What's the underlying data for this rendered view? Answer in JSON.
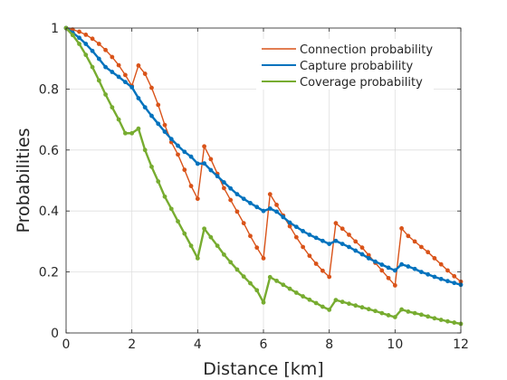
{
  "chart_data": {
    "type": "line",
    "xlabel": "Distance [km]",
    "ylabel": "Probabilities",
    "xlim": [
      0,
      12
    ],
    "ylim": [
      0,
      1
    ],
    "xticks": [
      0,
      2,
      4,
      6,
      8,
      10,
      12
    ],
    "yticks": [
      0,
      0.2,
      0.4,
      0.6,
      0.8,
      1
    ],
    "ytick_labels": [
      "0",
      "0.2",
      "0.4",
      "0.6",
      "0.8",
      "1"
    ],
    "grid": true,
    "legend_position": "top-right",
    "x": [
      0.0,
      0.2,
      0.4,
      0.6,
      0.8,
      1.0,
      1.2,
      1.4,
      1.6,
      1.8,
      2.0,
      2.2,
      2.4,
      2.6,
      2.8,
      3.0,
      3.2,
      3.4,
      3.6,
      3.8,
      4.0,
      4.2,
      4.4,
      4.6,
      4.8,
      5.0,
      5.2,
      5.4,
      5.6,
      5.8,
      6.0,
      6.2,
      6.4,
      6.6,
      6.8,
      7.0,
      7.2,
      7.4,
      7.6,
      7.8,
      8.0,
      8.2,
      8.4,
      8.6,
      8.8,
      9.0,
      9.2,
      9.4,
      9.6,
      9.8,
      10.0,
      10.2,
      10.4,
      10.6,
      10.8,
      11.0,
      11.2,
      11.4,
      11.6,
      11.8,
      12.0
    ],
    "series": [
      {
        "name": "Connection probability",
        "color": "#d95319",
        "values": [
          1.0,
          0.995,
          0.988,
          0.978,
          0.965,
          0.948,
          0.928,
          0.905,
          0.878,
          0.846,
          0.81,
          0.877,
          0.85,
          0.804,
          0.748,
          0.682,
          0.626,
          0.585,
          0.535,
          0.482,
          0.44,
          0.612,
          0.57,
          0.522,
          0.475,
          0.436,
          0.398,
          0.36,
          0.318,
          0.28,
          0.245,
          0.455,
          0.42,
          0.385,
          0.35,
          0.314,
          0.282,
          0.253,
          0.227,
          0.204,
          0.184,
          0.36,
          0.342,
          0.322,
          0.3,
          0.28,
          0.255,
          0.23,
          0.205,
          0.18,
          0.156,
          0.343,
          0.318,
          0.3,
          0.282,
          0.265,
          0.245,
          0.225,
          0.205,
          0.186,
          0.168
        ]
      },
      {
        "name": "Capture probability",
        "color": "#0072bd",
        "values": [
          1.0,
          0.985,
          0.968,
          0.948,
          0.925,
          0.899,
          0.872,
          0.856,
          0.84,
          0.823,
          0.806,
          0.77,
          0.74,
          0.712,
          0.686,
          0.66,
          0.636,
          0.614,
          0.594,
          0.578,
          0.555,
          0.556,
          0.534,
          0.514,
          0.494,
          0.474,
          0.455,
          0.44,
          0.426,
          0.413,
          0.4,
          0.408,
          0.398,
          0.38,
          0.362,
          0.348,
          0.334,
          0.322,
          0.312,
          0.302,
          0.292,
          0.302,
          0.292,
          0.282,
          0.27,
          0.258,
          0.245,
          0.234,
          0.224,
          0.214,
          0.205,
          0.225,
          0.218,
          0.21,
          0.2,
          0.192,
          0.184,
          0.177,
          0.17,
          0.164,
          0.158
        ]
      },
      {
        "name": "Coverage probability",
        "color": "#77ac30",
        "values": [
          1.0,
          0.977,
          0.948,
          0.912,
          0.872,
          0.828,
          0.782,
          0.74,
          0.7,
          0.655,
          0.655,
          0.67,
          0.6,
          0.545,
          0.497,
          0.447,
          0.407,
          0.366,
          0.326,
          0.286,
          0.245,
          0.342,
          0.314,
          0.286,
          0.257,
          0.232,
          0.208,
          0.185,
          0.163,
          0.14,
          0.1,
          0.183,
          0.171,
          0.158,
          0.145,
          0.132,
          0.12,
          0.109,
          0.098,
          0.086,
          0.076,
          0.108,
          0.102,
          0.096,
          0.09,
          0.084,
          0.078,
          0.072,
          0.065,
          0.058,
          0.052,
          0.077,
          0.07,
          0.065,
          0.06,
          0.054,
          0.048,
          0.043,
          0.038,
          0.034,
          0.03
        ]
      }
    ]
  }
}
